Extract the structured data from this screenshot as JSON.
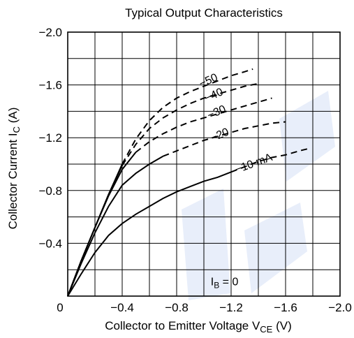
{
  "chart_data": {
    "type": "line",
    "title": "Typical Output Characteristics",
    "xlabel": {
      "main": "Collector to Emitter Voltage  V",
      "sub": "CE",
      "unit": "  (V)"
    },
    "ylabel": {
      "main": "Collector Current  I",
      "sub": "C",
      "unit": "  (A)"
    },
    "x_ticks": [
      {
        "value": 0,
        "label": "0"
      },
      {
        "value": -0.4,
        "label": "−0.4"
      },
      {
        "value": -0.8,
        "label": "−0.8"
      },
      {
        "value": -1.2,
        "label": "−1.2"
      },
      {
        "value": -1.6,
        "label": "−1.6"
      },
      {
        "value": -2.0,
        "label": "−2.0"
      }
    ],
    "y_ticks": [
      {
        "value": -2.0,
        "label": "−2.0"
      },
      {
        "value": -1.6,
        "label": "−1.6"
      },
      {
        "value": -1.2,
        "label": "−1.2"
      },
      {
        "value": -0.8,
        "label": "−0.8"
      },
      {
        "value": -0.4,
        "label": "−0.4"
      }
    ],
    "xlim": [
      0,
      -2.0
    ],
    "ylim": [
      0,
      -2.0
    ],
    "grid": {
      "x_step": -0.2,
      "y_step": -0.2
    },
    "series": [
      {
        "label": "10 mA",
        "solid": [
          [
            0,
            0
          ],
          [
            -0.1,
            -0.17
          ],
          [
            -0.2,
            -0.33
          ],
          [
            -0.3,
            -0.46
          ],
          [
            -0.4,
            -0.55
          ],
          [
            -0.5,
            -0.62
          ],
          [
            -0.6,
            -0.68
          ],
          [
            -0.7,
            -0.74
          ],
          [
            -0.8,
            -0.79
          ],
          [
            -0.9,
            -0.83
          ],
          [
            -1.0,
            -0.87
          ],
          [
            -1.1,
            -0.9
          ],
          [
            -1.2,
            -0.94
          ]
        ],
        "dashed": [
          [
            -1.2,
            -0.94
          ],
          [
            -1.3,
            -0.98
          ],
          [
            -1.4,
            -1.02
          ],
          [
            -1.5,
            -1.05
          ],
          [
            -1.6,
            -1.07
          ],
          [
            -1.7,
            -1.1
          ],
          [
            -1.78,
            -1.12
          ]
        ]
      },
      {
        "label": "−20",
        "solid": [
          [
            0,
            0
          ],
          [
            -0.1,
            -0.25
          ],
          [
            -0.2,
            -0.48
          ],
          [
            -0.3,
            -0.68
          ],
          [
            -0.4,
            -0.84
          ],
          [
            -0.5,
            -0.93
          ],
          [
            -0.6,
            -1.0
          ],
          [
            -0.7,
            -1.06
          ]
        ],
        "dashed": [
          [
            -0.7,
            -1.06
          ],
          [
            -0.8,
            -1.1
          ],
          [
            -0.9,
            -1.14
          ],
          [
            -1.0,
            -1.18
          ],
          [
            -1.1,
            -1.21
          ],
          [
            -1.2,
            -1.24
          ],
          [
            -1.3,
            -1.27
          ],
          [
            -1.4,
            -1.29
          ],
          [
            -1.5,
            -1.31
          ],
          [
            -1.6,
            -1.32
          ]
        ]
      },
      {
        "label": "−30",
        "solid": [
          [
            0,
            0
          ],
          [
            -0.1,
            -0.27
          ],
          [
            -0.2,
            -0.52
          ],
          [
            -0.3,
            -0.76
          ],
          [
            -0.4,
            -0.96
          ],
          [
            -0.5,
            -1.09
          ]
        ],
        "dashed": [
          [
            -0.5,
            -1.09
          ],
          [
            -0.6,
            -1.17
          ],
          [
            -0.7,
            -1.23
          ],
          [
            -0.8,
            -1.28
          ],
          [
            -0.9,
            -1.32
          ],
          [
            -1.0,
            -1.35
          ],
          [
            -1.1,
            -1.38
          ],
          [
            -1.2,
            -1.41
          ],
          [
            -1.3,
            -1.44
          ],
          [
            -1.4,
            -1.47
          ],
          [
            -1.5,
            -1.5
          ]
        ]
      },
      {
        "label": "−40",
        "solid": [
          [
            0,
            0
          ],
          [
            -0.1,
            -0.27
          ],
          [
            -0.2,
            -0.52
          ],
          [
            -0.3,
            -0.77
          ],
          [
            -0.4,
            -0.99
          ]
        ],
        "dashed": [
          [
            -0.4,
            -0.99
          ],
          [
            -0.5,
            -1.15
          ],
          [
            -0.6,
            -1.27
          ],
          [
            -0.7,
            -1.35
          ],
          [
            -0.8,
            -1.41
          ],
          [
            -0.9,
            -1.46
          ],
          [
            -1.0,
            -1.5
          ],
          [
            -1.1,
            -1.53
          ],
          [
            -1.2,
            -1.56
          ],
          [
            -1.3,
            -1.59
          ],
          [
            -1.4,
            -1.61
          ]
        ]
      },
      {
        "label": "−50",
        "solid": [
          [
            0,
            0
          ],
          [
            -0.1,
            -0.27
          ],
          [
            -0.2,
            -0.52
          ],
          [
            -0.3,
            -0.77
          ],
          [
            -0.4,
            -1.0
          ]
        ],
        "dashed": [
          [
            -0.4,
            -1.0
          ],
          [
            -0.5,
            -1.19
          ],
          [
            -0.6,
            -1.33
          ],
          [
            -0.7,
            -1.43
          ],
          [
            -0.8,
            -1.5
          ],
          [
            -0.9,
            -1.55
          ],
          [
            -1.0,
            -1.59
          ],
          [
            -1.1,
            -1.63
          ],
          [
            -1.2,
            -1.67
          ],
          [
            -1.3,
            -1.7
          ],
          [
            -1.36,
            -1.72
          ]
        ]
      }
    ],
    "annotations": [
      {
        "text": "−50",
        "x": -0.98,
        "y": -1.58,
        "rot": -24
      },
      {
        "text": "−40",
        "x": -1.02,
        "y": -1.47,
        "rot": -24
      },
      {
        "text": "−30",
        "x": -1.04,
        "y": -1.34,
        "rot": -24
      },
      {
        "text": "−20",
        "x": -1.06,
        "y": -1.17,
        "rot": -22
      },
      {
        "text": "−10 mA",
        "x": -1.24,
        "y": -0.93,
        "rot": -20
      }
    ],
    "ib_label": {
      "main": "I",
      "sub": "B",
      "rest": " = 0",
      "x": -1.05,
      "y": -0.06
    }
  }
}
